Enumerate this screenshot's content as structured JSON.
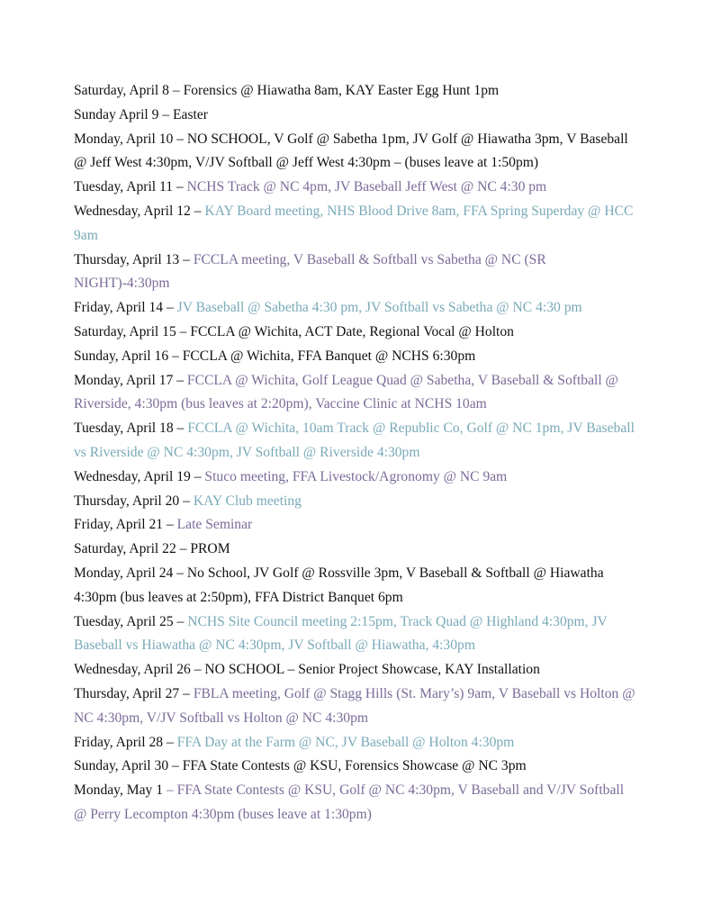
{
  "colors": {
    "black": "#111111",
    "purple": "#7a6b98",
    "teal": "#79a9b8"
  },
  "entries": [
    {
      "date": "Saturday, April 8",
      "sep": " – ",
      "events": "Forensics @ Hiawatha 8am, KAY Easter Egg Hunt 1pm",
      "color": "black"
    },
    {
      "date": "Sunday April 9",
      "sep": " – ",
      "events": "Easter",
      "color": "black"
    },
    {
      "date": "Monday, April 10",
      "sep": " – ",
      "events": "NO SCHOOL, V Golf @ Sabetha 1pm, JV Golf @ Hiawatha 3pm, V Baseball @ Jeff West 4:30pm, V/JV Softball @ Jeff West 4:30pm – (buses leave at 1:50pm)",
      "color": "black"
    },
    {
      "date": "Tuesday, April 11",
      "sep": " – ",
      "events": "NCHS Track @ NC 4pm, JV Baseball Jeff West @ NC 4:30 pm",
      "color": "purple"
    },
    {
      "date": "Wednesday, April 12",
      "sep": " – ",
      "events": "KAY Board meeting, NHS Blood Drive 8am, FFA Spring Superday @ HCC 9am",
      "color": "teal"
    },
    {
      "date": "Thursday, April 13",
      "sep": " – ",
      "events": "FCCLA meeting, V Baseball & Softball vs Sabetha @ NC (SR NIGHT)-4:30pm",
      "color": "purple"
    },
    {
      "date": "Friday, April 14",
      "sep": " – ",
      "events": "JV Baseball @ Sabetha 4:30 pm, JV Softball vs Sabetha @ NC 4:30 pm",
      "color": "teal"
    },
    {
      "date": "Saturday, April 15",
      "sep": " – ",
      "events": "FCCLA @ Wichita, ACT Date, Regional Vocal @ Holton",
      "color": "black"
    },
    {
      "date": "Sunday, April 16",
      "sep": " – ",
      "events": "FCCLA @ Wichita, FFA Banquet @ NCHS 6:30pm",
      "color": "black"
    },
    {
      "date": "Monday, April 17",
      "sep": " – ",
      "events": "FCCLA @ Wichita, Golf League Quad @ Sabetha, V Baseball & Softball @ Riverside, 4:30pm (bus leaves at 2:20pm), Vaccine Clinic at NCHS 10am",
      "color": "purple"
    },
    {
      "date": "Tuesday, April 18",
      "sep": " – ",
      "events": "FCCLA @ Wichita, 10am Track @ Republic Co, Golf @ NC 1pm, JV Baseball vs Riverside @ NC 4:30pm, JV Softball @ Riverside 4:30pm",
      "color": "teal"
    },
    {
      "date": "Wednesday, April 19",
      "sep": " – ",
      "events": "Stuco meeting, FFA Livestock/Agronomy @ NC 9am",
      "color": "purple"
    },
    {
      "date": "Thursday, April 20",
      "sep": " – ",
      "events": "KAY Club meeting",
      "color": "teal"
    },
    {
      "date": "Friday, April 21",
      "sep": " – ",
      "events": "Late Seminar",
      "color": "purple"
    },
    {
      "date": "Saturday, April 22",
      "sep": " – ",
      "events": "PROM",
      "color": "black"
    },
    {
      "date": "Monday, April 24",
      "sep": " – ",
      "events": "No School, JV Golf @ Rossville 3pm, V Baseball & Softball @ Hiawatha 4:30pm (bus leaves at 2:50pm), FFA District Banquet 6pm",
      "color": "black"
    },
    {
      "date": "Tuesday, April 25",
      "sep": " – ",
      "events": "NCHS Site Council meeting 2:15pm, Track Quad @ Highland 4:30pm, JV Baseball vs Hiawatha @ NC 4:30pm, JV Softball @ Hiawatha, 4:30pm",
      "color": "teal"
    },
    {
      "date": "Wednesday, April 26",
      "sep": " – ",
      "events": "NO SCHOOL – Senior Project Showcase, KAY Installation",
      "color": "black"
    },
    {
      "date": "Thursday, April 27",
      "sep": " – ",
      "events": "FBLA meeting, Golf @ Stagg Hills (St. Mary’s) 9am, V Baseball vs Holton @ NC 4:30pm, V/JV Softball vs Holton @ NC 4:30pm",
      "color": "purple"
    },
    {
      "date": "Friday, April 28",
      "sep": " – ",
      "events": "FFA Day at the Farm @ NC, JV Baseball @ Holton 4:30pm",
      "color": "teal"
    },
    {
      "date": "Sunday, April 30",
      "sep": " – ",
      "events": "FFA State Contests @ KSU, Forensics Showcase @ NC 3pm",
      "color": "black"
    },
    {
      "date": "Monday, May 1",
      "sep": " – ",
      "events": "FFA State Contests @ KSU, Golf @ NC 4:30pm, V Baseball and V/JV Softball @ Perry Lecompton 4:30pm (buses leave at 1:30pm)",
      "color": "purple",
      "sep_colored": true
    }
  ]
}
